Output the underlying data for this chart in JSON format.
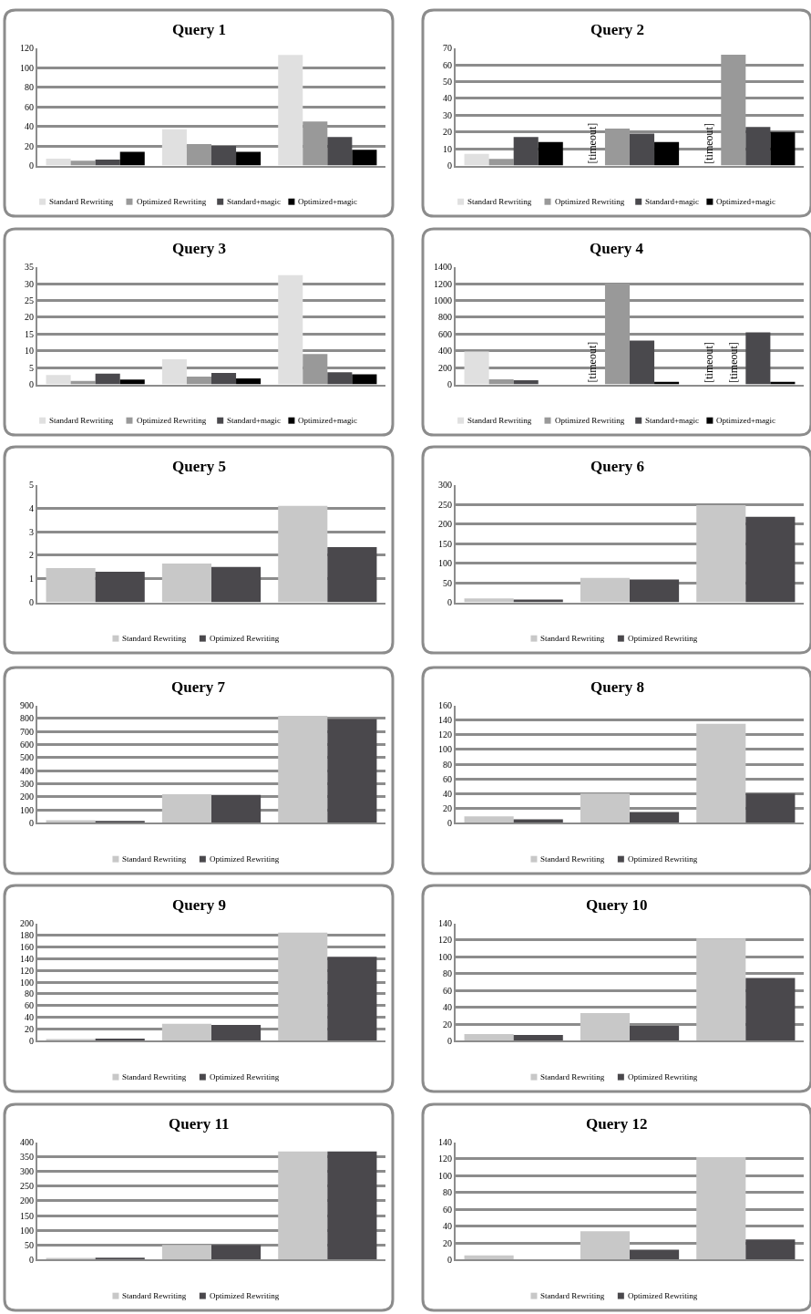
{
  "chart_data": [
    {
      "type": "bar",
      "title": "Query 1",
      "categories": [
        null,
        null,
        null
      ],
      "ylim": [
        0,
        120
      ],
      "yticks": [
        0,
        20,
        40,
        60,
        80,
        100,
        120
      ],
      "grid": "y",
      "legend": "bottom",
      "series": [
        {
          "name": "Standard Rewriting",
          "color": "#e0e0e0",
          "values": [
            7,
            37,
            113
          ]
        },
        {
          "name": "Optimized Rewriting",
          "color": "#999999",
          "values": [
            5,
            22,
            45
          ]
        },
        {
          "name": "Standard+magic",
          "color": "#4a494d",
          "values": [
            6,
            20,
            29
          ]
        },
        {
          "name": "Optimized+magic",
          "color": "#000000",
          "values": [
            14,
            14,
            16
          ]
        }
      ]
    },
    {
      "type": "bar",
      "title": "Query 2",
      "categories": [
        null,
        null,
        null
      ],
      "ylim": [
        0,
        70
      ],
      "yticks": [
        0,
        10,
        20,
        30,
        40,
        50,
        60,
        70
      ],
      "grid": "y",
      "legend": "bottom",
      "series": [
        {
          "name": "Standard Rewriting",
          "color": "#e0e0e0",
          "values": [
            7,
            null,
            null
          ],
          "value_labels": [
            null,
            "[timeout]",
            "[timeout]"
          ]
        },
        {
          "name": "Optimized Rewriting",
          "color": "#999999",
          "values": [
            4,
            22,
            66
          ]
        },
        {
          "name": "Standard+magic",
          "color": "#4a494d",
          "values": [
            17,
            19,
            23
          ]
        },
        {
          "name": "Optimized+magic",
          "color": "#000000",
          "values": [
            14,
            14,
            20
          ]
        }
      ]
    },
    {
      "type": "bar",
      "title": "Query 3",
      "categories": [
        null,
        null,
        null
      ],
      "ylim": [
        0,
        35
      ],
      "yticks": [
        0,
        5,
        10,
        15,
        20,
        25,
        30,
        35
      ],
      "grid": "y",
      "legend": "bottom",
      "series": [
        {
          "name": "Standard Rewriting",
          "color": "#e0e0e0",
          "values": [
            2.8,
            7.5,
            32.5
          ]
        },
        {
          "name": "Optimized Rewriting",
          "color": "#999999",
          "values": [
            1,
            2.3,
            9
          ]
        },
        {
          "name": "Standard+magic",
          "color": "#4a494d",
          "values": [
            3.2,
            3.4,
            3.6
          ]
        },
        {
          "name": "Optimized+magic",
          "color": "#000000",
          "values": [
            1.4,
            1.8,
            3
          ]
        }
      ]
    },
    {
      "type": "bar",
      "title": "Query 4",
      "categories": [
        null,
        null,
        null
      ],
      "ylim": [
        0,
        1400
      ],
      "yticks": [
        0,
        200,
        400,
        600,
        800,
        1000,
        1200,
        1400
      ],
      "grid": "y",
      "legend": "bottom",
      "series": [
        {
          "name": "Standard Rewriting",
          "color": "#e0e0e0",
          "values": [
            390,
            null,
            null
          ],
          "value_labels": [
            null,
            "[timeout]",
            "[timeout]"
          ]
        },
        {
          "name": "Optimized Rewriting",
          "color": "#999999",
          "values": [
            60,
            1200,
            null
          ],
          "value_labels": [
            null,
            null,
            "[timeout]"
          ]
        },
        {
          "name": "Standard+magic",
          "color": "#4a494d",
          "values": [
            50,
            520,
            620
          ]
        },
        {
          "name": "Optimized+magic",
          "color": "#000000",
          "values": [
            0,
            30,
            30
          ]
        }
      ]
    },
    {
      "type": "bar",
      "title": "Query 5",
      "categories": [
        null,
        null,
        null
      ],
      "ylim": [
        0,
        5
      ],
      "yticks": [
        0,
        1,
        2,
        3,
        4,
        5
      ],
      "grid": "y",
      "legend": "bottom",
      "series": [
        {
          "name": "Standard Rewriting",
          "color": "#c8c8c8",
          "values": [
            1.45,
            1.65,
            4.1
          ]
        },
        {
          "name": "Optimized Rewriting",
          "color": "#4a484c",
          "values": [
            1.3,
            1.5,
            2.35
          ]
        }
      ]
    },
    {
      "type": "bar",
      "title": "Query 6",
      "categories": [
        null,
        null,
        null
      ],
      "ylim": [
        0,
        300
      ],
      "yticks": [
        0,
        50,
        100,
        150,
        200,
        250,
        300
      ],
      "grid": "y",
      "legend": "bottom",
      "series": [
        {
          "name": "Standard Rewriting",
          "color": "#c8c8c8",
          "values": [
            10,
            62,
            248
          ]
        },
        {
          "name": "Optimized Rewriting",
          "color": "#4a484c",
          "values": [
            7,
            58,
            218
          ]
        }
      ]
    },
    {
      "type": "bar",
      "title": "Query 7",
      "categories": [
        null,
        null,
        null
      ],
      "ylim": [
        0,
        900
      ],
      "yticks": [
        0,
        100,
        200,
        300,
        400,
        500,
        600,
        700,
        800,
        900
      ],
      "grid": "y",
      "legend": "bottom",
      "series": [
        {
          "name": "Standard Rewriting",
          "color": "#c8c8c8",
          "values": [
            20,
            220,
            820
          ]
        },
        {
          "name": "Optimized Rewriting",
          "color": "#4a484c",
          "values": [
            15,
            215,
            795
          ]
        }
      ]
    },
    {
      "type": "bar",
      "title": "Query 8",
      "categories": [
        null,
        null,
        null
      ],
      "ylim": [
        0,
        160
      ],
      "yticks": [
        0,
        20,
        40,
        60,
        80,
        100,
        120,
        140,
        160
      ],
      "grid": "y",
      "legend": "bottom",
      "series": [
        {
          "name": "Standard Rewriting",
          "color": "#c8c8c8",
          "values": [
            9,
            40,
            135
          ]
        },
        {
          "name": "Optimized Rewriting",
          "color": "#4a484c",
          "values": [
            5,
            15,
            40
          ]
        }
      ]
    },
    {
      "type": "bar",
      "title": "Query 9",
      "categories": [
        null,
        null,
        null
      ],
      "ylim": [
        0,
        200
      ],
      "yticks": [
        0,
        20,
        40,
        60,
        80,
        100,
        120,
        140,
        160,
        180,
        200
      ],
      "grid": "y",
      "legend": "bottom",
      "series": [
        {
          "name": "Standard Rewriting",
          "color": "#c8c8c8",
          "values": [
            3,
            29,
            184
          ]
        },
        {
          "name": "Optimized Rewriting",
          "color": "#4a484c",
          "values": [
            4,
            27,
            143
          ]
        }
      ]
    },
    {
      "type": "bar",
      "title": "Query 10",
      "categories": [
        null,
        null,
        null
      ],
      "ylim": [
        0,
        140
      ],
      "yticks": [
        0,
        20,
        40,
        60,
        80,
        100,
        120,
        140
      ],
      "grid": "y",
      "legend": "bottom",
      "series": [
        {
          "name": "Standard Rewriting",
          "color": "#c8c8c8",
          "values": [
            8,
            33,
            122
          ]
        },
        {
          "name": "Optimized Rewriting",
          "color": "#4a484c",
          "values": [
            7,
            18,
            75
          ]
        }
      ]
    },
    {
      "type": "bar",
      "title": "Query 11",
      "categories": [
        null,
        null,
        null
      ],
      "ylim": [
        0,
        400
      ],
      "yticks": [
        0,
        50,
        100,
        150,
        200,
        250,
        300,
        350,
        400
      ],
      "grid": "y",
      "legend": "bottom",
      "series": [
        {
          "name": "Standard Rewriting",
          "color": "#c8c8c8",
          "values": [
            4,
            50,
            368
          ]
        },
        {
          "name": "Optimized Rewriting",
          "color": "#4a484c",
          "values": [
            7,
            50,
            368
          ]
        }
      ]
    },
    {
      "type": "bar",
      "title": "Query 12",
      "categories": [
        null,
        null,
        null
      ],
      "ylim": [
        0,
        140
      ],
      "yticks": [
        0,
        20,
        40,
        60,
        80,
        100,
        120,
        140
      ],
      "grid": "y",
      "legend": "bottom",
      "series": [
        {
          "name": "Standard Rewriting",
          "color": "#c8c8c8",
          "values": [
            5,
            34,
            122
          ]
        },
        {
          "name": "Optimized Rewriting",
          "color": "#4a484c",
          "values": [
            0,
            12,
            24
          ]
        }
      ]
    }
  ]
}
